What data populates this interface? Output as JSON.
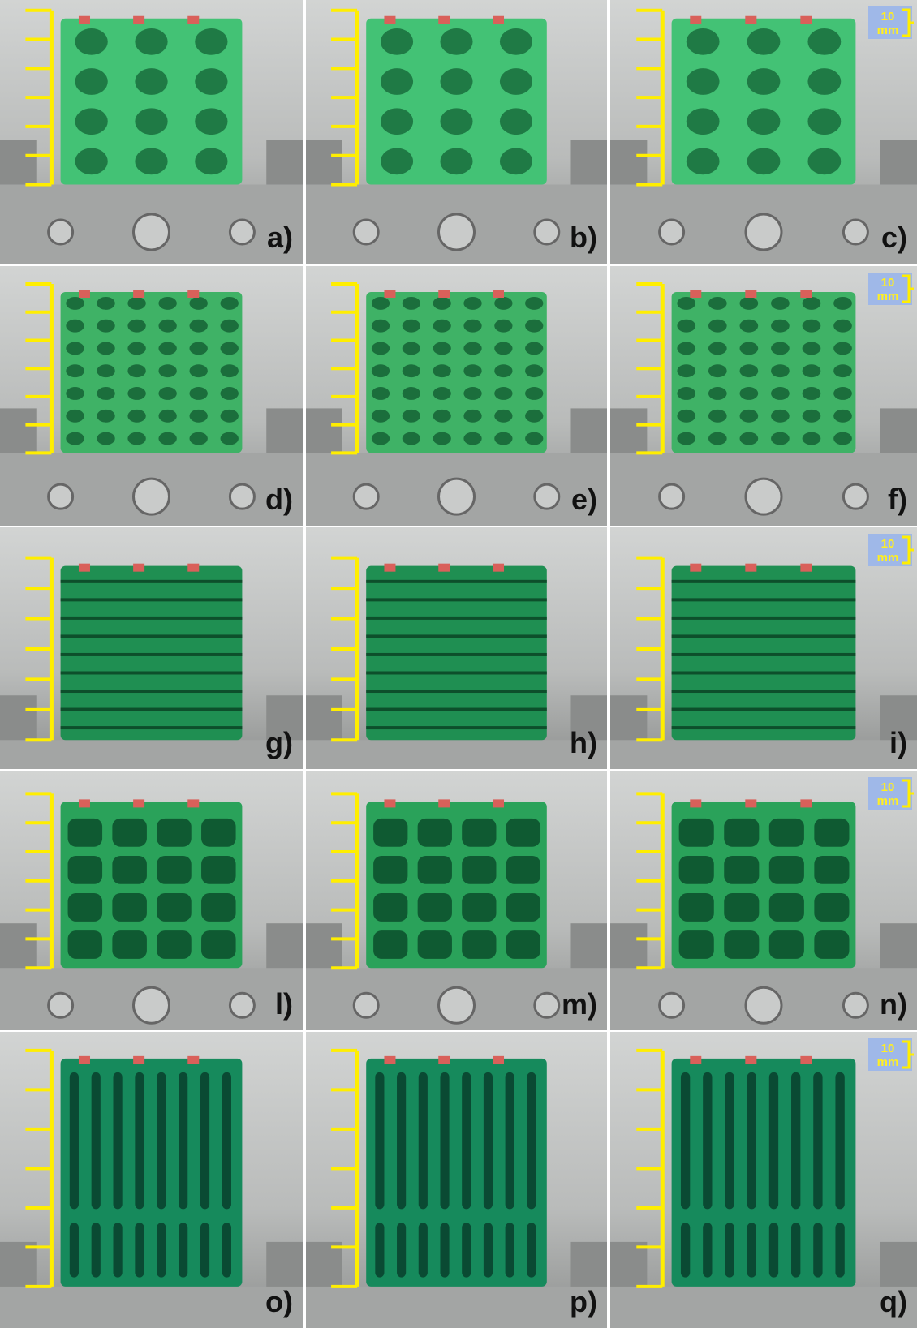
{
  "rows": [
    {
      "panels": [
        "a)",
        "b)",
        "c)"
      ],
      "scale_bar": [
        "10",
        "mm"
      ]
    },
    {
      "panels": [
        "d)",
        "e)",
        "f)"
      ],
      "scale_bar": [
        "10",
        "mm"
      ]
    },
    {
      "panels": [
        "g)",
        "h)",
        "i)"
      ],
      "scale_bar": [
        "10",
        "mm"
      ]
    },
    {
      "panels": [
        "l)",
        "m)",
        "n)"
      ],
      "scale_bar": [
        "10",
        "mm"
      ]
    },
    {
      "panels": [
        "o)",
        "p)",
        "q)"
      ],
      "scale_bar": [
        "10",
        "mm"
      ]
    }
  ]
}
